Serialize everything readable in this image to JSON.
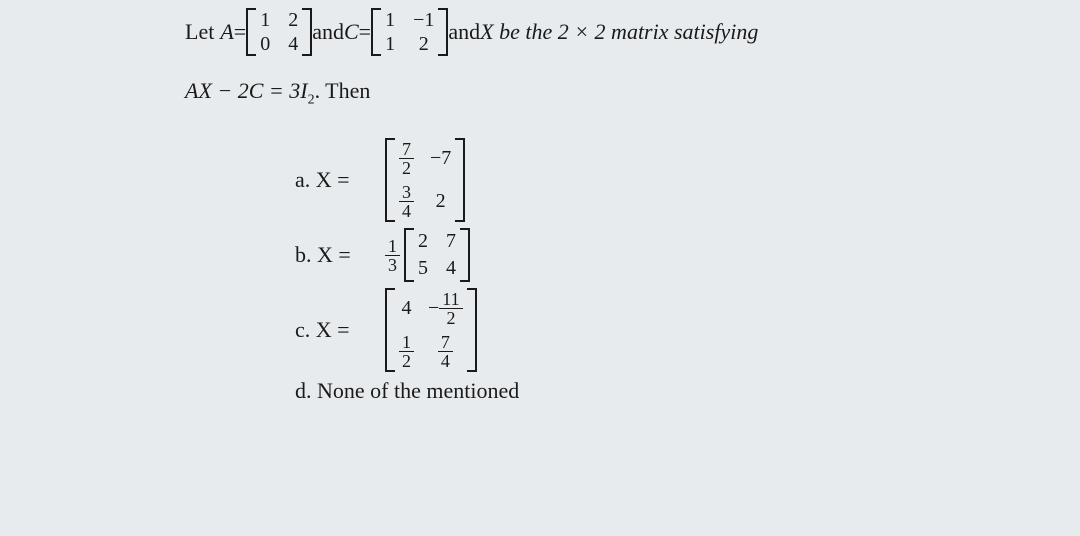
{
  "question": {
    "pre": "Let ",
    "A_eq": "A",
    "equals": " = ",
    "matrixA": {
      "r1c1": "1",
      "r1c2": "2",
      "r2c1": "0",
      "r2c2": "4"
    },
    "and1": " and ",
    "C_eq": "C",
    "matrixC": {
      "r1c1": "1",
      "r1c2": "−1",
      "r2c1": "1",
      "r2c2": "2"
    },
    "and2": " and ",
    "tail": "X be the 2 × 2 matrix satisfying",
    "line2_a": "AX − 2C = 3I",
    "line2_sub": "2",
    "line2_b": ". Then"
  },
  "answers": {
    "a": {
      "label": "a.  X = ",
      "r1c1": {
        "num": "7",
        "den": "2"
      },
      "r1c2": "−7",
      "r2c1": {
        "num": "3",
        "den": "4"
      },
      "r2c2": "2"
    },
    "b": {
      "label": "b.  X = ",
      "scalar": {
        "num": "1",
        "den": "3"
      },
      "r1c1": "2",
      "r1c2": "7",
      "r2c1": "5",
      "r2c2": "4"
    },
    "c": {
      "label": "c.  X = ",
      "r1c1": "4",
      "r1c2_neg": "− ",
      "r1c2": {
        "num": "11",
        "den": "2"
      },
      "r2c1": {
        "num": "1",
        "den": "2"
      },
      "r2c2": {
        "num": "7",
        "den": "4"
      }
    },
    "d": {
      "label": "d.  None of the mentioned"
    }
  }
}
